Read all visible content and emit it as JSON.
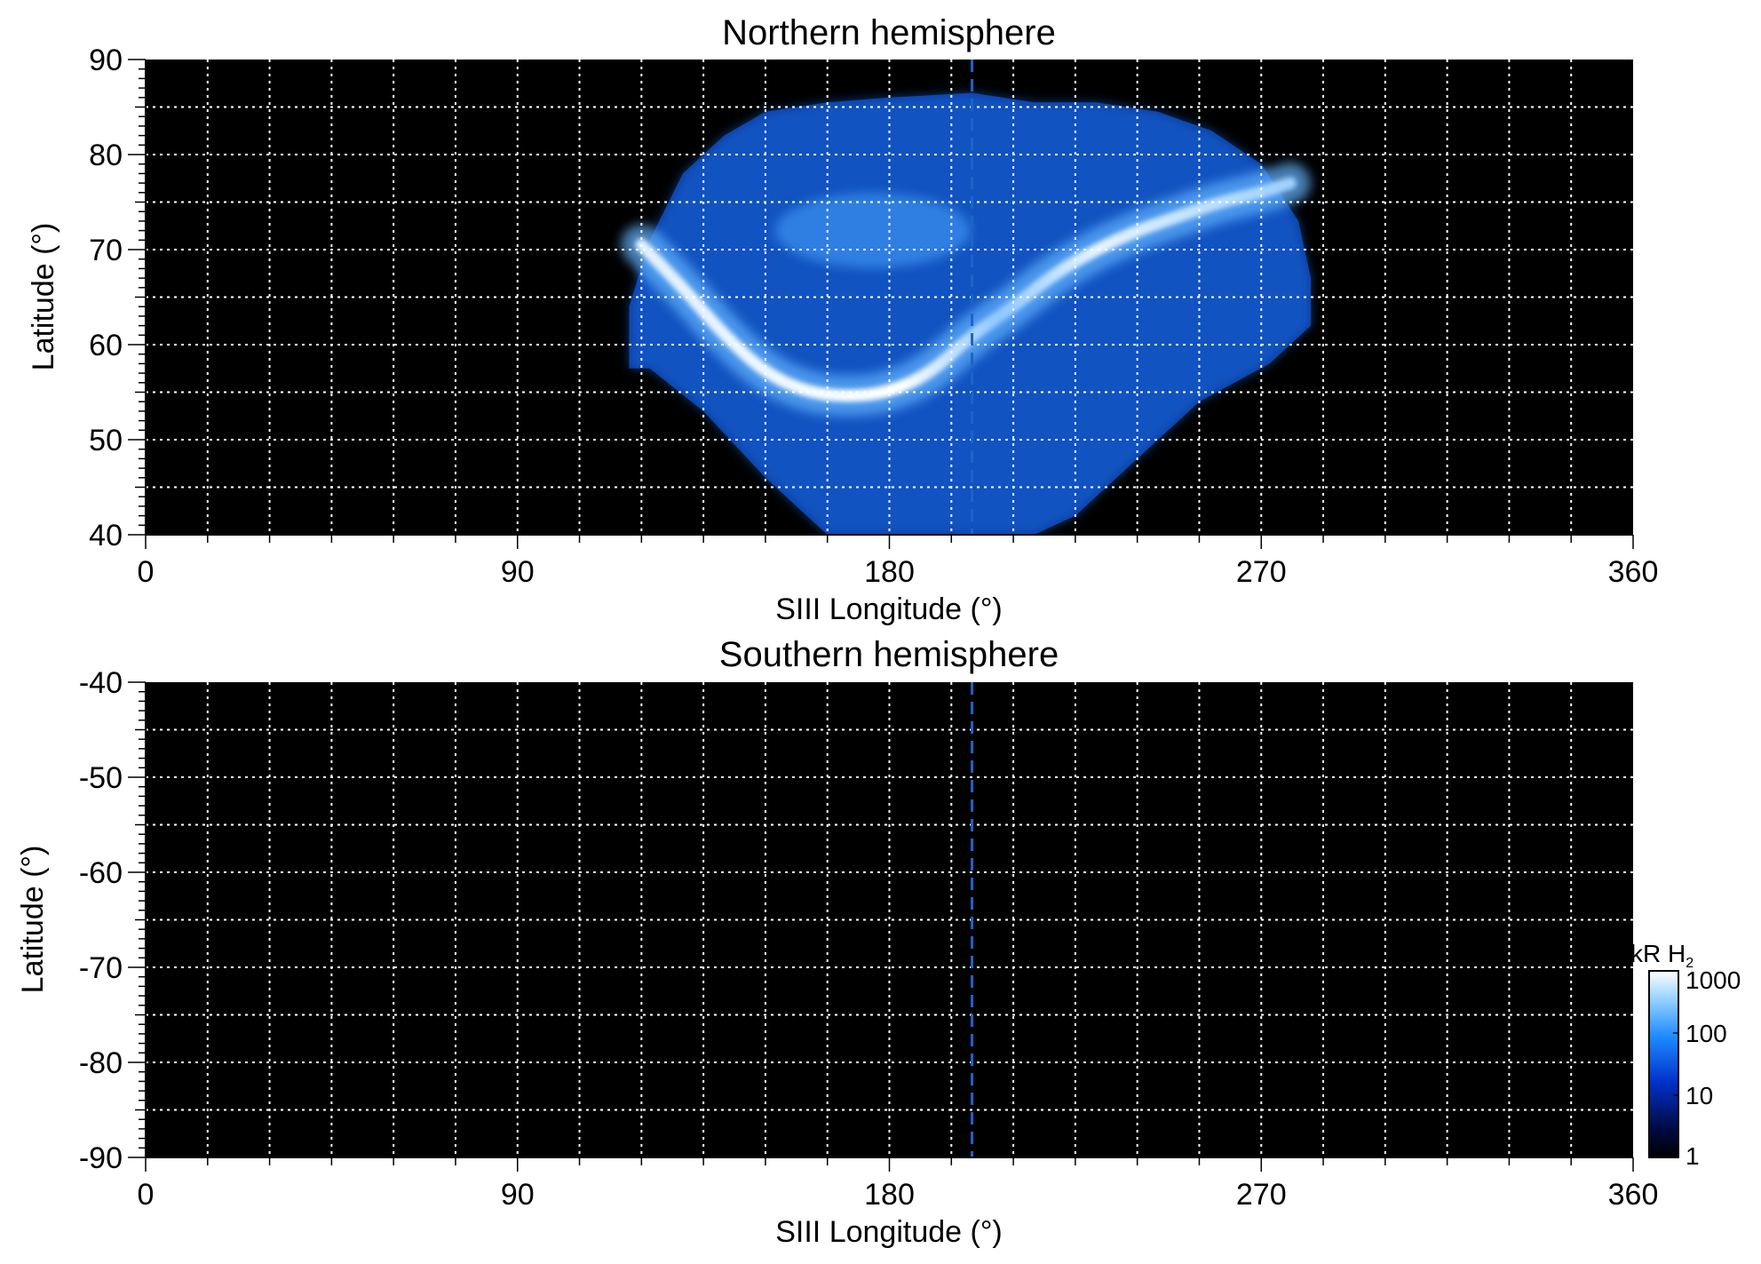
{
  "chart_data": [
    {
      "type": "heatmap",
      "title": "Northern hemisphere",
      "xlabel": "SIII Longitude (°)",
      "ylabel": "Latitude (°)",
      "xlim": [
        0,
        360
      ],
      "ylim": [
        40,
        90
      ],
      "x_ticks": [
        0,
        90,
        180,
        270,
        360
      ],
      "x_minor_step": 15,
      "y_ticks": [
        40,
        50,
        60,
        70,
        80,
        90
      ],
      "y_grid_step": 5,
      "grid": true,
      "reference_longitude": 200,
      "background_color": "#000000",
      "emission": {
        "coverage_longitude": [
          117,
          282
        ],
        "coverage_latitude_top": 86.5,
        "main_oval": {
          "longitude": [
            120,
            130,
            140,
            150,
            160,
            170,
            180,
            190,
            200,
            210,
            220,
            230,
            240,
            250,
            260,
            270,
            277
          ],
          "latitude": [
            70.5,
            66,
            61,
            57,
            55,
            54.5,
            55,
            57,
            61,
            64,
            67.5,
            70,
            72,
            73.5,
            75,
            76,
            77
          ]
        },
        "peak_brightness_kR": 1000
      }
    },
    {
      "type": "heatmap",
      "title": "Southern hemisphere",
      "xlabel": "SIII Longitude (°)",
      "ylabel": "Latitude (°)",
      "xlim": [
        0,
        360
      ],
      "ylim": [
        -90,
        -40
      ],
      "x_ticks": [
        0,
        90,
        180,
        270,
        360
      ],
      "x_minor_step": 15,
      "y_ticks": [
        -40,
        -50,
        -60,
        -70,
        -80,
        -90
      ],
      "y_grid_step": 5,
      "grid": true,
      "reference_longitude": 200,
      "background_color": "#000000"
    }
  ],
  "colorbar": {
    "label": "kR H",
    "label_subscript": "2",
    "scale": "log",
    "range": [
      1,
      1000
    ],
    "ticks": [
      "1000",
      "100",
      "10",
      "1"
    ],
    "tick_values": [
      1000,
      100,
      10,
      1
    ],
    "colors": [
      "#000000",
      "#000a40",
      "#0030c8",
      "#1e8cff",
      "#96d2ff",
      "#ffffff"
    ]
  },
  "colors": {
    "grid": "#ffffff",
    "reference_line": "#1e64c8",
    "axes": "#000000"
  }
}
